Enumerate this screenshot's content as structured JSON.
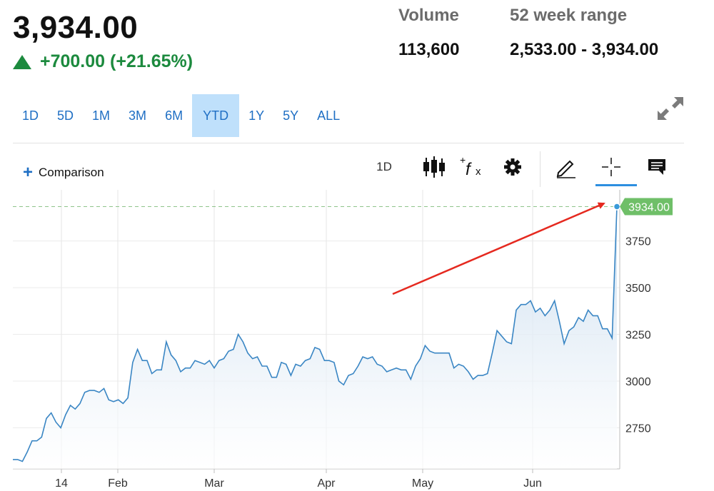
{
  "quote": {
    "price": "3,934.00",
    "change": "+700.00 (+21.65%)",
    "volume_label": "Volume",
    "volume_value": "113,600",
    "range_label": "52 week range",
    "range_value": "2,533.00 - 3,934.00"
  },
  "ranges": [
    {
      "label": "1D",
      "active": false
    },
    {
      "label": "5D",
      "active": false
    },
    {
      "label": "1M",
      "active": false
    },
    {
      "label": "3M",
      "active": false
    },
    {
      "label": "6M",
      "active": false
    },
    {
      "label": "YTD",
      "active": true
    },
    {
      "label": "1Y",
      "active": false
    },
    {
      "label": "5Y",
      "active": false
    },
    {
      "label": "ALL",
      "active": false
    }
  ],
  "toolbar": {
    "comparison_label": "Comparison",
    "interval_label": "1D",
    "icons": [
      "candlestick-icon",
      "indicator-fx-icon",
      "gear-icon",
      "pencil-icon",
      "crosshair-icon",
      "comment-icon"
    ]
  },
  "colors": {
    "line": "#3a86c4",
    "area_top": "#c9dcee",
    "positive": "#1c8a3e",
    "price_tag": "#6fbf68",
    "range_active": "#bfe0fb",
    "annotation_arrow": "#e5291f"
  },
  "chart_data": {
    "type": "area",
    "x_tick_labels": [
      "14",
      "Feb",
      "Mar",
      "Apr",
      "May",
      "Jun"
    ],
    "y_ticks": [
      2750,
      3000,
      3250,
      3500,
      3750
    ],
    "ylim": [
      2530,
      4020
    ],
    "last_value_label": "3934.00",
    "reference_line_value": 3934,
    "series": [
      {
        "values": [
          2580,
          2580,
          2570,
          2620,
          2680,
          2680,
          2700,
          2800,
          2830,
          2780,
          2750,
          2820,
          2870,
          2850,
          2880,
          2940,
          2950,
          2950,
          2940,
          2960,
          2900,
          2890,
          2900,
          2880,
          2910,
          3100,
          3170,
          3110,
          3110,
          3040,
          3060,
          3060,
          3210,
          3140,
          3110,
          3050,
          3070,
          3070,
          3110,
          3100,
          3090,
          3110,
          3070,
          3110,
          3120,
          3160,
          3170,
          3250,
          3210,
          3150,
          3120,
          3130,
          3080,
          3080,
          3020,
          3020,
          3100,
          3090,
          3030,
          3090,
          3080,
          3110,
          3120,
          3180,
          3170,
          3110,
          3110,
          3100,
          3000,
          2980,
          3030,
          3040,
          3080,
          3130,
          3120,
          3130,
          3090,
          3080,
          3050,
          3060,
          3070,
          3060,
          3060,
          3010,
          3080,
          3120,
          3190,
          3160,
          3150,
          3150,
          3150,
          3150,
          3070,
          3090,
          3080,
          3050,
          3010,
          3030,
          3030,
          3040,
          3150,
          3270,
          3240,
          3210,
          3200,
          3380,
          3410,
          3410,
          3430,
          3370,
          3390,
          3350,
          3380,
          3430,
          3320,
          3200,
          3270,
          3290,
          3340,
          3320,
          3380,
          3350,
          3350,
          3280,
          3280,
          3230,
          3934
        ]
      }
    ]
  }
}
